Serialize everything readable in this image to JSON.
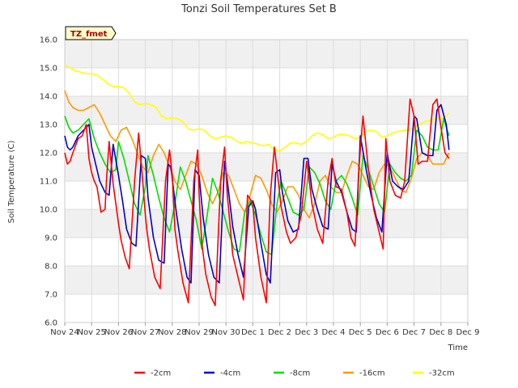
{
  "chart_data": {
    "type": "line",
    "title": "Tonzi Soil Temperatures Set B",
    "xlabel": "Time",
    "ylabel": "Soil Temperature (C)",
    "station_badge": "TZ_fmet",
    "ylim": [
      6.0,
      16.0
    ],
    "yticks": [
      "6.0",
      "7.0",
      "8.0",
      "9.0",
      "10.0",
      "11.0",
      "12.0",
      "13.0",
      "14.0",
      "15.0",
      "16.0"
    ],
    "xlim": [
      0,
      15
    ],
    "xticks": [
      "Nov 24",
      "Nov 25",
      "Nov 26",
      "Nov 27",
      "Nov 28",
      "Nov 29",
      "Nov 30",
      "Dec 1",
      "Dec 2",
      "Dec 3",
      "Dec 4",
      "Dec 5",
      "Dec 6",
      "Dec 7",
      "Dec 8",
      "Dec 9"
    ],
    "grid": true,
    "legend_position": "bottom",
    "series": [
      {
        "name": "-2cm",
        "color": "#ff0000",
        "x": [
          0.0,
          0.1,
          0.2,
          0.3,
          0.5,
          0.65,
          0.8,
          0.9,
          1.0,
          1.1,
          1.2,
          1.35,
          1.5,
          1.55,
          1.65,
          1.8,
          2.0,
          2.1,
          2.25,
          2.4,
          2.6,
          2.75,
          2.9,
          3.0,
          3.05,
          3.15,
          3.35,
          3.55,
          3.75,
          3.9,
          4.0,
          4.1,
          4.2,
          4.4,
          4.6,
          4.8,
          4.95,
          5.0,
          5.1,
          5.25,
          5.45,
          5.6,
          5.8,
          5.95,
          6.05,
          6.25,
          6.45,
          6.65,
          6.8,
          6.95,
          7.0,
          7.1,
          7.3,
          7.5,
          7.65,
          7.8,
          7.95,
          8.05,
          8.25,
          8.4,
          8.6,
          8.8,
          9.0,
          9.05,
          9.2,
          9.4,
          9.6,
          9.8,
          9.95,
          10.1,
          10.3,
          10.5,
          10.65,
          10.8,
          10.95,
          11.1,
          11.3,
          11.5,
          11.7,
          11.85,
          11.95,
          12.1,
          12.3,
          12.5,
          12.65,
          12.85,
          13.0,
          13.15,
          13.3,
          13.5,
          13.7,
          13.85,
          14.0,
          14.15,
          14.3
        ],
        "y": [
          12.0,
          11.6,
          11.7,
          12.0,
          12.5,
          12.6,
          13.0,
          11.8,
          11.3,
          11.0,
          10.8,
          9.9,
          10.0,
          11.0,
          12.4,
          10.9,
          9.5,
          8.9,
          8.3,
          7.9,
          11.0,
          12.7,
          11.0,
          9.8,
          9.3,
          8.6,
          7.6,
          7.2,
          11.0,
          12.1,
          11.2,
          9.3,
          8.6,
          7.4,
          6.7,
          11.0,
          12.1,
          10.5,
          8.8,
          7.7,
          6.9,
          6.6,
          11.0,
          12.2,
          10.5,
          8.4,
          7.6,
          6.8,
          10.5,
          10.3,
          10.2,
          9.0,
          7.6,
          6.7,
          10.5,
          12.2,
          11.0,
          10.1,
          9.2,
          8.8,
          9.0,
          9.8,
          11.7,
          11.4,
          10.2,
          9.3,
          8.8,
          11.0,
          11.8,
          10.8,
          10.7,
          9.9,
          9.0,
          8.7,
          11.5,
          13.3,
          11.4,
          10.0,
          9.2,
          8.6,
          12.5,
          11.0,
          10.5,
          10.4,
          11.0,
          13.9,
          13.3,
          11.6,
          11.7,
          11.7,
          13.7,
          13.9,
          12.9,
          12.0,
          11.8
        ]
      },
      {
        "name": "-4cm",
        "color": "#0000cc",
        "x": [
          0.0,
          0.1,
          0.2,
          0.3,
          0.5,
          0.7,
          0.9,
          1.0,
          1.15,
          1.3,
          1.5,
          1.65,
          1.8,
          2.0,
          2.15,
          2.3,
          2.5,
          2.65,
          2.85,
          3.0,
          3.1,
          3.3,
          3.5,
          3.7,
          3.85,
          3.95,
          4.15,
          4.35,
          4.55,
          4.7,
          4.85,
          5.0,
          5.15,
          5.35,
          5.55,
          5.75,
          5.95,
          6.05,
          6.25,
          6.45,
          6.65,
          6.85,
          7.0,
          7.1,
          7.3,
          7.5,
          7.65,
          7.85,
          8.0,
          8.1,
          8.3,
          8.5,
          8.7,
          8.9,
          9.05,
          9.2,
          9.4,
          9.6,
          9.8,
          9.95,
          10.1,
          10.3,
          10.5,
          10.7,
          10.85,
          11.0,
          11.2,
          11.4,
          11.6,
          11.8,
          12.0,
          12.2,
          12.4,
          12.6,
          12.8,
          13.0,
          13.1,
          13.3,
          13.5,
          13.7,
          13.85,
          14.0,
          14.2,
          14.3
        ],
        "y": [
          12.6,
          12.2,
          12.1,
          12.2,
          12.6,
          12.8,
          13.0,
          12.2,
          11.6,
          11.0,
          10.6,
          10.5,
          12.3,
          11.2,
          10.3,
          9.3,
          8.8,
          8.7,
          11.9,
          11.8,
          10.4,
          9.0,
          8.2,
          8.1,
          11.6,
          11.5,
          9.9,
          8.6,
          7.6,
          7.4,
          11.4,
          11.2,
          9.7,
          8.4,
          7.6,
          7.4,
          11.7,
          11.0,
          9.4,
          8.4,
          7.6,
          10.1,
          10.3,
          10.0,
          8.8,
          7.7,
          7.4,
          11.3,
          11.4,
          10.6,
          9.6,
          9.2,
          9.3,
          11.8,
          11.8,
          10.7,
          10.0,
          9.4,
          9.3,
          11.6,
          11.0,
          10.6,
          9.9,
          9.3,
          9.2,
          12.6,
          11.5,
          10.5,
          9.7,
          9.2,
          12.0,
          11.0,
          10.8,
          10.7,
          11.0,
          13.3,
          13.2,
          12.0,
          11.9,
          11.9,
          13.5,
          13.7,
          13.0,
          12.1
        ]
      },
      {
        "name": "-8cm",
        "color": "#00dd00",
        "x": [
          0.0,
          0.15,
          0.3,
          0.5,
          0.7,
          0.9,
          1.1,
          1.3,
          1.5,
          1.7,
          1.9,
          2.0,
          2.2,
          2.4,
          2.6,
          2.8,
          3.0,
          3.1,
          3.3,
          3.5,
          3.7,
          3.9,
          4.1,
          4.3,
          4.5,
          4.7,
          4.9,
          5.1,
          5.3,
          5.5,
          5.7,
          5.9,
          6.1,
          6.3,
          6.5,
          6.7,
          6.9,
          7.1,
          7.3,
          7.5,
          7.7,
          7.9,
          8.05,
          8.3,
          8.5,
          8.7,
          8.9,
          9.1,
          9.3,
          9.5,
          9.7,
          9.9,
          10.1,
          10.3,
          10.5,
          10.7,
          10.9,
          11.1,
          11.3,
          11.5,
          11.7,
          11.9,
          12.1,
          12.3,
          12.5,
          12.7,
          12.9,
          13.1,
          13.3,
          13.5,
          13.7,
          13.9,
          14.1,
          14.3
        ],
        "y": [
          13.3,
          12.9,
          12.7,
          12.8,
          13.0,
          13.2,
          12.5,
          12.0,
          11.6,
          11.3,
          11.4,
          12.4,
          11.8,
          11.0,
          10.2,
          9.8,
          10.8,
          11.9,
          11.2,
          10.4,
          9.7,
          9.2,
          10.2,
          11.5,
          11.0,
          10.3,
          9.6,
          8.6,
          9.8,
          11.1,
          10.6,
          9.9,
          9.2,
          8.6,
          8.5,
          9.9,
          10.3,
          9.8,
          9.1,
          8.5,
          8.4,
          10.2,
          11.0,
          10.4,
          9.9,
          9.8,
          10.0,
          11.5,
          11.3,
          10.9,
          10.3,
          10.0,
          11.0,
          11.2,
          10.9,
          10.4,
          9.8,
          11.9,
          11.4,
          10.8,
          10.2,
          9.9,
          11.6,
          11.3,
          11.1,
          11.0,
          11.2,
          12.8,
          12.6,
          12.2,
          12.1,
          12.1,
          13.2,
          12.6
        ]
      },
      {
        "name": "-16cm",
        "color": "#ff9900",
        "x": [
          0.0,
          0.15,
          0.3,
          0.5,
          0.7,
          0.9,
          1.1,
          1.3,
          1.5,
          1.7,
          1.9,
          2.1,
          2.3,
          2.5,
          2.7,
          2.9,
          3.1,
          3.3,
          3.5,
          3.7,
          3.9,
          4.1,
          4.3,
          4.5,
          4.7,
          4.9,
          5.1,
          5.3,
          5.5,
          5.7,
          5.9,
          6.1,
          6.3,
          6.5,
          6.7,
          6.9,
          7.1,
          7.3,
          7.5,
          7.7,
          7.9,
          8.1,
          8.3,
          8.5,
          8.7,
          8.9,
          9.1,
          9.3,
          9.5,
          9.7,
          9.9,
          10.1,
          10.3,
          10.5,
          10.7,
          10.9,
          11.1,
          11.3,
          11.5,
          11.7,
          11.9,
          12.1,
          12.3,
          12.5,
          12.7,
          12.9,
          13.1,
          13.3,
          13.5,
          13.7,
          13.9,
          14.1,
          14.3
        ],
        "y": [
          14.2,
          13.8,
          13.6,
          13.5,
          13.5,
          13.6,
          13.7,
          13.4,
          13.0,
          12.6,
          12.4,
          12.8,
          12.9,
          12.5,
          12.0,
          11.5,
          11.3,
          11.9,
          12.3,
          12.0,
          11.5,
          11.0,
          10.7,
          11.2,
          11.7,
          11.6,
          11.2,
          10.6,
          10.2,
          10.6,
          11.3,
          11.2,
          10.7,
          10.2,
          9.9,
          10.5,
          11.2,
          11.1,
          10.7,
          10.2,
          9.9,
          10.3,
          10.8,
          10.8,
          10.5,
          10.0,
          9.7,
          10.2,
          11.0,
          11.2,
          10.8,
          10.6,
          10.6,
          11.2,
          11.7,
          11.6,
          11.2,
          10.8,
          10.7,
          11.3,
          11.6,
          11.5,
          11.1,
          10.7,
          10.6,
          11.1,
          11.8,
          12.0,
          11.9,
          11.6,
          11.6,
          11.6,
          12.0
        ]
      },
      {
        "name": "-32cm",
        "color": "#ffff00",
        "x": [
          0.0,
          0.2,
          0.4,
          0.6,
          0.8,
          1.0,
          1.2,
          1.4,
          1.6,
          1.8,
          2.0,
          2.2,
          2.4,
          2.6,
          2.8,
          3.0,
          3.2,
          3.4,
          3.6,
          3.8,
          4.0,
          4.2,
          4.4,
          4.6,
          4.8,
          5.0,
          5.2,
          5.4,
          5.6,
          5.8,
          6.0,
          6.2,
          6.4,
          6.6,
          6.8,
          7.0,
          7.2,
          7.4,
          7.6,
          7.8,
          8.0,
          8.2,
          8.4,
          8.6,
          8.8,
          9.0,
          9.2,
          9.4,
          9.6,
          9.8,
          10.0,
          10.2,
          10.4,
          10.6,
          10.8,
          11.0,
          11.2,
          11.4,
          11.6,
          11.8,
          12.0,
          12.2,
          12.4,
          12.6,
          12.8,
          13.0,
          13.2,
          13.4,
          13.6,
          13.8,
          14.0,
          14.2,
          14.3
        ],
        "y": [
          15.1,
          15.0,
          14.9,
          14.85,
          14.8,
          14.8,
          14.75,
          14.6,
          14.45,
          14.35,
          14.35,
          14.3,
          14.1,
          13.8,
          13.7,
          13.75,
          13.7,
          13.6,
          13.3,
          13.2,
          13.25,
          13.2,
          13.1,
          12.85,
          12.8,
          12.85,
          12.8,
          12.6,
          12.5,
          12.55,
          12.6,
          12.55,
          12.4,
          12.35,
          12.4,
          12.35,
          12.3,
          12.25,
          12.3,
          12.1,
          12.05,
          12.2,
          12.35,
          12.35,
          12.3,
          12.4,
          12.6,
          12.7,
          12.65,
          12.5,
          12.55,
          12.65,
          12.65,
          12.6,
          12.5,
          12.55,
          12.75,
          12.8,
          12.75,
          12.55,
          12.6,
          12.7,
          12.75,
          12.8,
          12.8,
          12.9,
          13.0,
          13.1,
          13.15,
          13.2,
          13.2,
          13.3,
          13.4
        ]
      }
    ]
  }
}
